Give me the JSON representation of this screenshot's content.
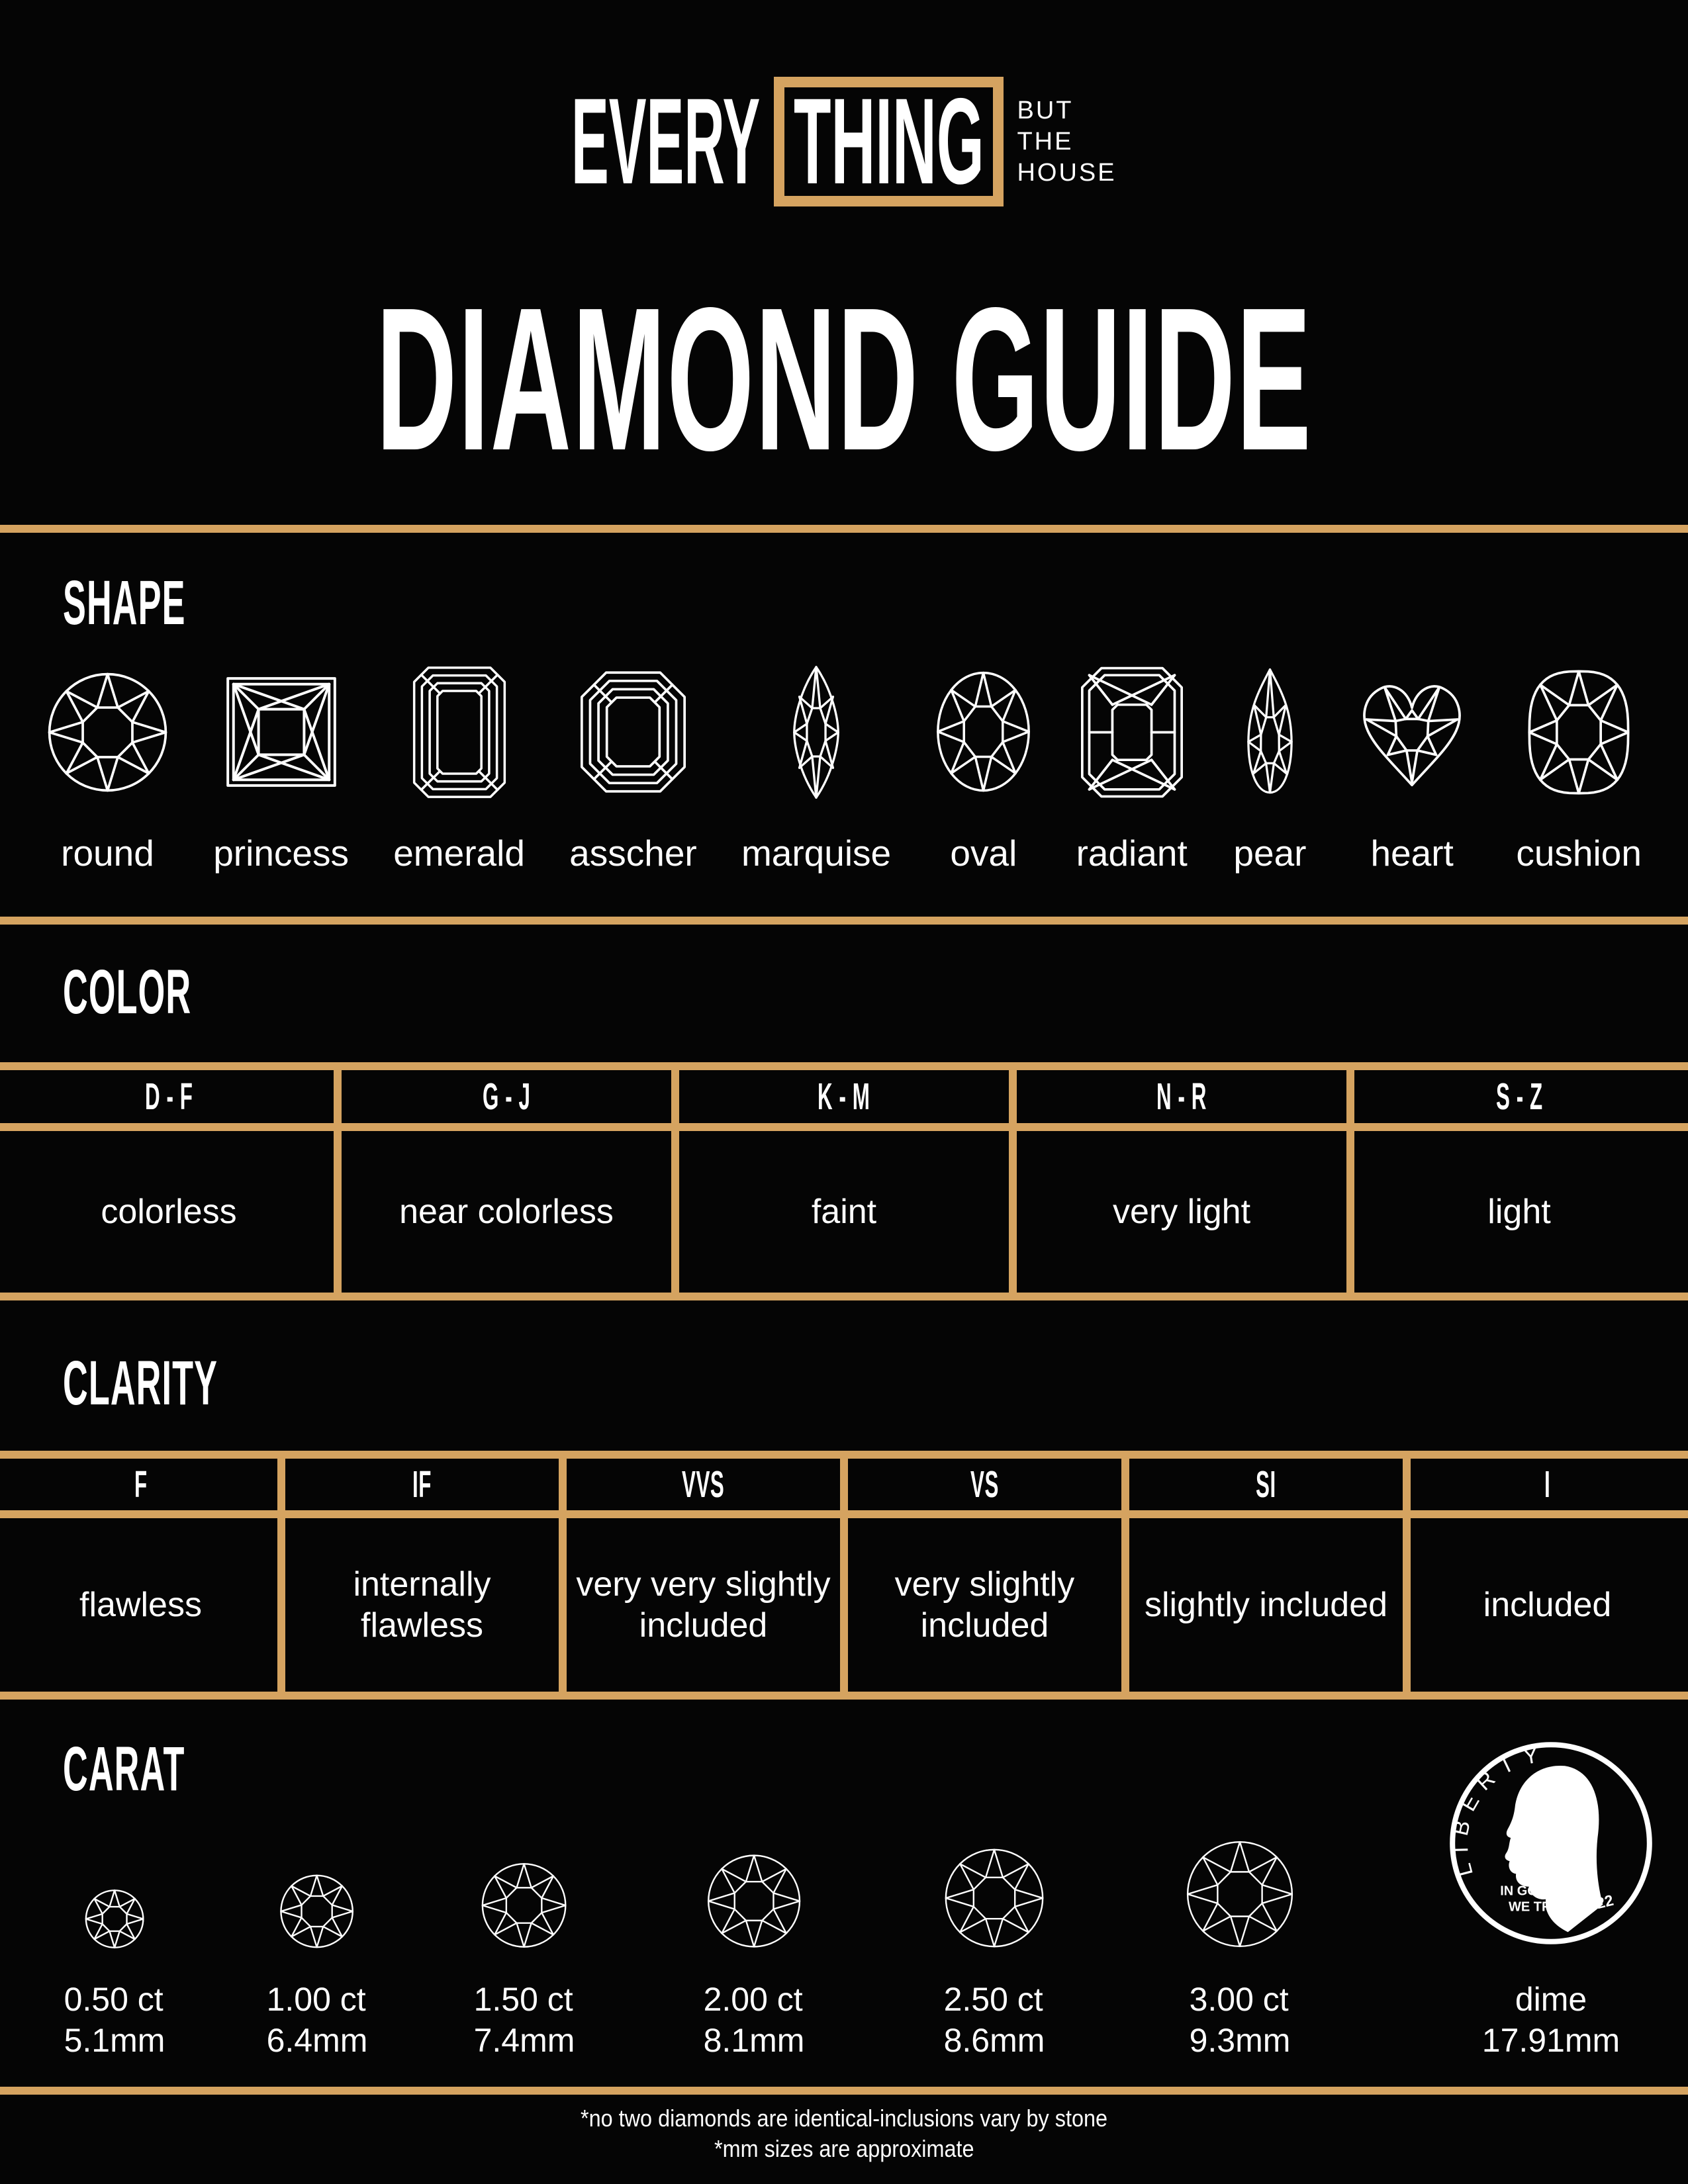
{
  "theme": {
    "background": "#050505",
    "gold": "#D5A360",
    "text": "#FFFFFF"
  },
  "logo": {
    "word_left": "EVERY",
    "word_boxed": "THING",
    "tagline": [
      "BUT",
      "THE",
      "HOUSE"
    ]
  },
  "title": "DIAMOND GUIDE",
  "sections": {
    "shape": {
      "heading": "SHAPE",
      "items": [
        {
          "name": "round",
          "label": "round"
        },
        {
          "name": "princess",
          "label": "princess"
        },
        {
          "name": "emerald",
          "label": "emerald"
        },
        {
          "name": "asscher",
          "label": "asscher"
        },
        {
          "name": "marquise",
          "label": "marquise"
        },
        {
          "name": "oval",
          "label": "oval"
        },
        {
          "name": "radiant",
          "label": "radiant"
        },
        {
          "name": "pear",
          "label": "pear"
        },
        {
          "name": "heart",
          "label": "heart"
        },
        {
          "name": "cushion",
          "label": "cushion"
        }
      ]
    },
    "color": {
      "heading": "COLOR",
      "columns": [
        {
          "code": "D - F",
          "desc": "colorless"
        },
        {
          "code": "G - J",
          "desc": "near colorless"
        },
        {
          "code": "K - M",
          "desc": "faint"
        },
        {
          "code": "N - R",
          "desc": "very light"
        },
        {
          "code": "S - Z",
          "desc": "light"
        }
      ]
    },
    "clarity": {
      "heading": "CLARITY",
      "columns": [
        {
          "code": "F",
          "desc": "flawless"
        },
        {
          "code": "IF",
          "desc": "internally\nflawless"
        },
        {
          "code": "VVS",
          "desc": "very very slightly\nincluded"
        },
        {
          "code": "VS",
          "desc": "very slightly\nincluded"
        },
        {
          "code": "SI",
          "desc": "slightly included"
        },
        {
          "code": "I",
          "desc": "included"
        }
      ]
    },
    "carat": {
      "heading": "CARAT",
      "items": [
        {
          "icon": "round-diamond",
          "carat": "0.50 ct",
          "mm": "5.1mm"
        },
        {
          "icon": "round-diamond",
          "carat": "1.00 ct",
          "mm": "6.4mm"
        },
        {
          "icon": "round-diamond",
          "carat": "1.50 ct",
          "mm": "7.4mm"
        },
        {
          "icon": "round-diamond",
          "carat": "2.00 ct",
          "mm": "8.1mm"
        },
        {
          "icon": "round-diamond",
          "carat": "2.50 ct",
          "mm": "8.6mm"
        },
        {
          "icon": "round-diamond",
          "carat": "3.00 ct",
          "mm": "9.3mm"
        },
        {
          "icon": "dime-coin",
          "carat": "dime",
          "mm": "17.91mm"
        }
      ],
      "dime": {
        "motto_line1": "IN GOD",
        "motto_line2": "WE TRUST",
        "legend": "LIBERTY",
        "year": "2022"
      }
    }
  },
  "footnotes": [
    "*no two diamonds are identical-inclusions vary by stone",
    "*mm sizes are approximate"
  ]
}
